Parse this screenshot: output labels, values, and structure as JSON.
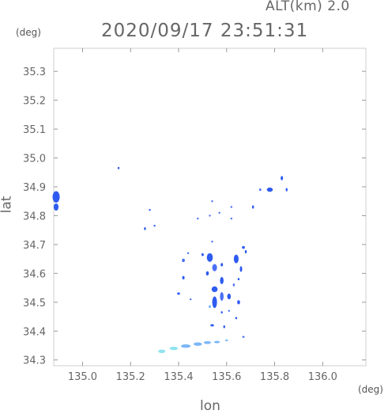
{
  "header": {
    "altitude_label": "ALT(km) 2.0",
    "timestamp": "2020/09/17 23:51:31"
  },
  "axes": {
    "y_unit": "(deg)",
    "x_unit": "(deg)",
    "x_label": "lon",
    "y_label": "lat"
  },
  "chart_data": {
    "type": "scatter",
    "xlim": [
      134.88,
      136.18
    ],
    "ylim": [
      34.28,
      35.38
    ],
    "x_ticks": [
      135.0,
      135.2,
      135.4,
      135.6,
      135.8,
      136.0
    ],
    "x_tick_labels": [
      "135.0",
      "135.2",
      "135.4",
      "135.6",
      "135.8",
      "136.0"
    ],
    "y_ticks": [
      34.3,
      34.4,
      34.5,
      34.6,
      34.7,
      34.8,
      34.9,
      35.0,
      35.1,
      35.2,
      35.3
    ],
    "y_tick_labels": [
      "34.3",
      "34.4",
      "34.5",
      "34.6",
      "34.7",
      "34.8",
      "34.9",
      "35.0",
      "35.1",
      "35.2",
      "35.3"
    ],
    "grid": false,
    "colors": {
      "strong": "#2e5bf0",
      "medium": "#4a6ff5",
      "weak": "#7bb7f5",
      "light": "#8fe3f0"
    },
    "points": [
      {
        "lon": 134.89,
        "lat": 34.865,
        "w": 0.03,
        "h": 0.04,
        "level": "strong"
      },
      {
        "lon": 134.89,
        "lat": 34.83,
        "w": 0.02,
        "h": 0.025,
        "level": "strong"
      },
      {
        "lon": 135.15,
        "lat": 34.965,
        "w": 0.008,
        "h": 0.008,
        "level": "strong"
      },
      {
        "lon": 135.28,
        "lat": 34.82,
        "w": 0.006,
        "h": 0.006,
        "level": "strong"
      },
      {
        "lon": 135.26,
        "lat": 34.755,
        "w": 0.008,
        "h": 0.01,
        "level": "strong"
      },
      {
        "lon": 135.3,
        "lat": 34.765,
        "w": 0.004,
        "h": 0.006,
        "level": "strong"
      },
      {
        "lon": 135.83,
        "lat": 34.93,
        "w": 0.01,
        "h": 0.015,
        "level": "strong"
      },
      {
        "lon": 135.78,
        "lat": 34.89,
        "w": 0.025,
        "h": 0.015,
        "level": "strong"
      },
      {
        "lon": 135.74,
        "lat": 34.89,
        "w": 0.008,
        "h": 0.008,
        "level": "strong"
      },
      {
        "lon": 135.85,
        "lat": 34.89,
        "w": 0.006,
        "h": 0.012,
        "level": "strong"
      },
      {
        "lon": 135.71,
        "lat": 34.83,
        "w": 0.006,
        "h": 0.012,
        "level": "strong"
      },
      {
        "lon": 135.54,
        "lat": 34.85,
        "w": 0.004,
        "h": 0.004,
        "level": "medium"
      },
      {
        "lon": 135.62,
        "lat": 34.83,
        "w": 0.004,
        "h": 0.006,
        "level": "medium"
      },
      {
        "lon": 135.62,
        "lat": 34.79,
        "w": 0.004,
        "h": 0.004,
        "level": "medium"
      },
      {
        "lon": 135.57,
        "lat": 34.81,
        "w": 0.004,
        "h": 0.004,
        "level": "medium"
      },
      {
        "lon": 135.53,
        "lat": 34.8,
        "w": 0.004,
        "h": 0.004,
        "level": "medium"
      },
      {
        "lon": 135.48,
        "lat": 34.79,
        "w": 0.004,
        "h": 0.004,
        "level": "medium"
      },
      {
        "lon": 135.54,
        "lat": 34.71,
        "w": 0.006,
        "h": 0.006,
        "level": "medium"
      },
      {
        "lon": 135.67,
        "lat": 34.69,
        "w": 0.012,
        "h": 0.01,
        "level": "strong"
      },
      {
        "lon": 135.68,
        "lat": 34.675,
        "w": 0.008,
        "h": 0.012,
        "level": "strong"
      },
      {
        "lon": 135.44,
        "lat": 34.67,
        "w": 0.008,
        "h": 0.006,
        "level": "medium"
      },
      {
        "lon": 135.42,
        "lat": 34.645,
        "w": 0.012,
        "h": 0.012,
        "level": "medium"
      },
      {
        "lon": 135.42,
        "lat": 34.585,
        "w": 0.01,
        "h": 0.012,
        "level": "strong"
      },
      {
        "lon": 135.5,
        "lat": 34.665,
        "w": 0.01,
        "h": 0.01,
        "level": "strong"
      },
      {
        "lon": 135.53,
        "lat": 34.655,
        "w": 0.025,
        "h": 0.03,
        "level": "strong"
      },
      {
        "lon": 135.55,
        "lat": 34.62,
        "w": 0.02,
        "h": 0.025,
        "level": "medium"
      },
      {
        "lon": 135.52,
        "lat": 34.6,
        "w": 0.012,
        "h": 0.015,
        "level": "strong"
      },
      {
        "lon": 135.58,
        "lat": 34.63,
        "w": 0.01,
        "h": 0.012,
        "level": "strong"
      },
      {
        "lon": 135.64,
        "lat": 34.65,
        "w": 0.02,
        "h": 0.03,
        "level": "strong"
      },
      {
        "lon": 135.66,
        "lat": 34.615,
        "w": 0.01,
        "h": 0.02,
        "level": "strong"
      },
      {
        "lon": 135.65,
        "lat": 34.58,
        "w": 0.008,
        "h": 0.008,
        "level": "strong"
      },
      {
        "lon": 135.63,
        "lat": 34.56,
        "w": 0.008,
        "h": 0.01,
        "level": "medium"
      },
      {
        "lon": 135.58,
        "lat": 34.575,
        "w": 0.015,
        "h": 0.025,
        "level": "strong"
      },
      {
        "lon": 135.55,
        "lat": 34.545,
        "w": 0.025,
        "h": 0.02,
        "level": "strong"
      },
      {
        "lon": 135.55,
        "lat": 34.5,
        "w": 0.02,
        "h": 0.04,
        "level": "strong"
      },
      {
        "lon": 135.58,
        "lat": 34.52,
        "w": 0.015,
        "h": 0.03,
        "level": "medium"
      },
      {
        "lon": 135.61,
        "lat": 34.52,
        "w": 0.015,
        "h": 0.02,
        "level": "strong"
      },
      {
        "lon": 135.65,
        "lat": 34.5,
        "w": 0.012,
        "h": 0.015,
        "level": "strong"
      },
      {
        "lon": 135.53,
        "lat": 34.485,
        "w": 0.01,
        "h": 0.01,
        "level": "weak"
      },
      {
        "lon": 135.4,
        "lat": 34.53,
        "w": 0.012,
        "h": 0.008,
        "level": "strong"
      },
      {
        "lon": 135.45,
        "lat": 34.51,
        "w": 0.006,
        "h": 0.006,
        "level": "medium"
      },
      {
        "lon": 135.61,
        "lat": 34.47,
        "w": 0.006,
        "h": 0.006,
        "level": "medium"
      },
      {
        "lon": 135.58,
        "lat": 34.465,
        "w": 0.006,
        "h": 0.008,
        "level": "strong"
      },
      {
        "lon": 135.64,
        "lat": 34.445,
        "w": 0.008,
        "h": 0.008,
        "level": "strong"
      },
      {
        "lon": 135.54,
        "lat": 34.42,
        "w": 0.015,
        "h": 0.008,
        "level": "strong"
      },
      {
        "lon": 135.59,
        "lat": 34.415,
        "w": 0.008,
        "h": 0.01,
        "level": "strong"
      },
      {
        "lon": 135.67,
        "lat": 34.38,
        "w": 0.01,
        "h": 0.006,
        "level": "medium"
      },
      {
        "lon": 135.33,
        "lat": 34.33,
        "w": 0.03,
        "h": 0.012,
        "level": "light"
      },
      {
        "lon": 135.38,
        "lat": 34.34,
        "w": 0.035,
        "h": 0.012,
        "level": "light"
      },
      {
        "lon": 135.43,
        "lat": 34.348,
        "w": 0.04,
        "h": 0.012,
        "level": "weak"
      },
      {
        "lon": 135.48,
        "lat": 34.355,
        "w": 0.035,
        "h": 0.012,
        "level": "weak"
      },
      {
        "lon": 135.52,
        "lat": 34.36,
        "w": 0.03,
        "h": 0.01,
        "level": "weak"
      },
      {
        "lon": 135.56,
        "lat": 34.362,
        "w": 0.025,
        "h": 0.008,
        "level": "weak"
      },
      {
        "lon": 135.6,
        "lat": 34.368,
        "w": 0.012,
        "h": 0.006,
        "level": "weak"
      }
    ]
  }
}
